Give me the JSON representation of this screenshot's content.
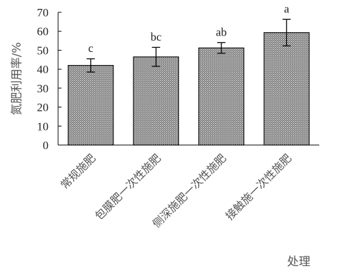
{
  "chart_data": {
    "type": "bar",
    "title": "",
    "xlabel": "处理",
    "ylabel": "氮肥利用率/%",
    "ylim": [
      0,
      70
    ],
    "yticks": [
      0,
      10,
      20,
      30,
      40,
      50,
      60,
      70
    ],
    "categories": [
      "常规施肥",
      "包膜肥一次性施肥",
      "侧深施肥一次性施肥",
      "接触施一次性施肥"
    ],
    "values": [
      42,
      46.5,
      51.2,
      59.3
    ],
    "errors": [
      3.5,
      5,
      2.8,
      7
    ],
    "significance_labels": [
      "c",
      "bc",
      "ab",
      "a"
    ],
    "bar_fill": "dotted-gray",
    "grid": false,
    "legend": "none"
  }
}
